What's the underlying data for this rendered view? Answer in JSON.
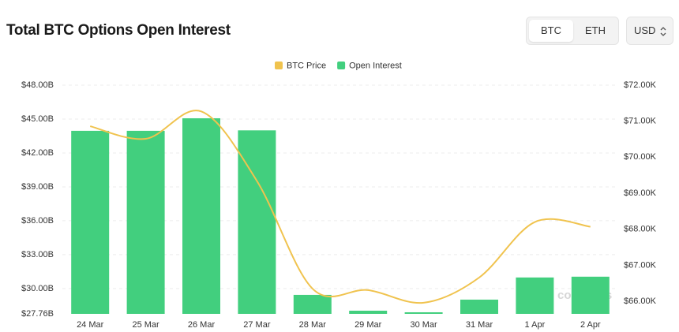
{
  "header": {
    "title": "Total BTC Options Open Interest",
    "toggle": [
      "BTC",
      "ETH"
    ],
    "currency": "USD"
  },
  "chart_data": {
    "type": "bar",
    "categories": [
      "24 Mar",
      "25 Mar",
      "26 Mar",
      "27 Mar",
      "28 Mar",
      "29 Mar",
      "30 Mar",
      "31 Mar",
      "1 Apr",
      "2 Apr"
    ],
    "series": [
      {
        "name": "BTC Price",
        "type": "line",
        "axis": "y2",
        "color": "#f0c34e",
        "values": [
          70.86,
          70.51,
          71.27,
          69.34,
          66.35,
          66.31,
          65.96,
          66.66,
          68.2,
          68.07
        ]
      },
      {
        "name": "Open Interest",
        "type": "bar",
        "color": "#42cf7e",
        "values": [
          43.96,
          43.96,
          45.07,
          44.0,
          29.44,
          28.04,
          27.9,
          29.02,
          30.98,
          31.05
        ]
      }
    ],
    "ylim": [
      27.76,
      48
    ],
    "yticks": [
      {
        "value": 27.76,
        "label": "$27.76B"
      },
      {
        "value": 30,
        "label": "$30.00B"
      },
      {
        "value": 33,
        "label": "$33.00B"
      },
      {
        "value": 36,
        "label": "$36.00B"
      },
      {
        "value": 39,
        "label": "$39.00B"
      },
      {
        "value": 42,
        "label": "$42.00B"
      },
      {
        "value": 45,
        "label": "$45.00B"
      },
      {
        "value": 48,
        "label": "$48.00B"
      }
    ],
    "y2lim": [
      65.65,
      72
    ],
    "y2ticks": [
      {
        "value": 66,
        "label": "$66.00K"
      },
      {
        "value": 67,
        "label": "$67.00K"
      },
      {
        "value": 68,
        "label": "$68.00K"
      },
      {
        "value": 69,
        "label": "$69.00K"
      },
      {
        "value": 70,
        "label": "$70.00K"
      },
      {
        "value": 71,
        "label": "$71.00K"
      },
      {
        "value": 72,
        "label": "$72.00K"
      }
    ],
    "grid": true,
    "legend": "top",
    "watermark": "coinglass"
  }
}
